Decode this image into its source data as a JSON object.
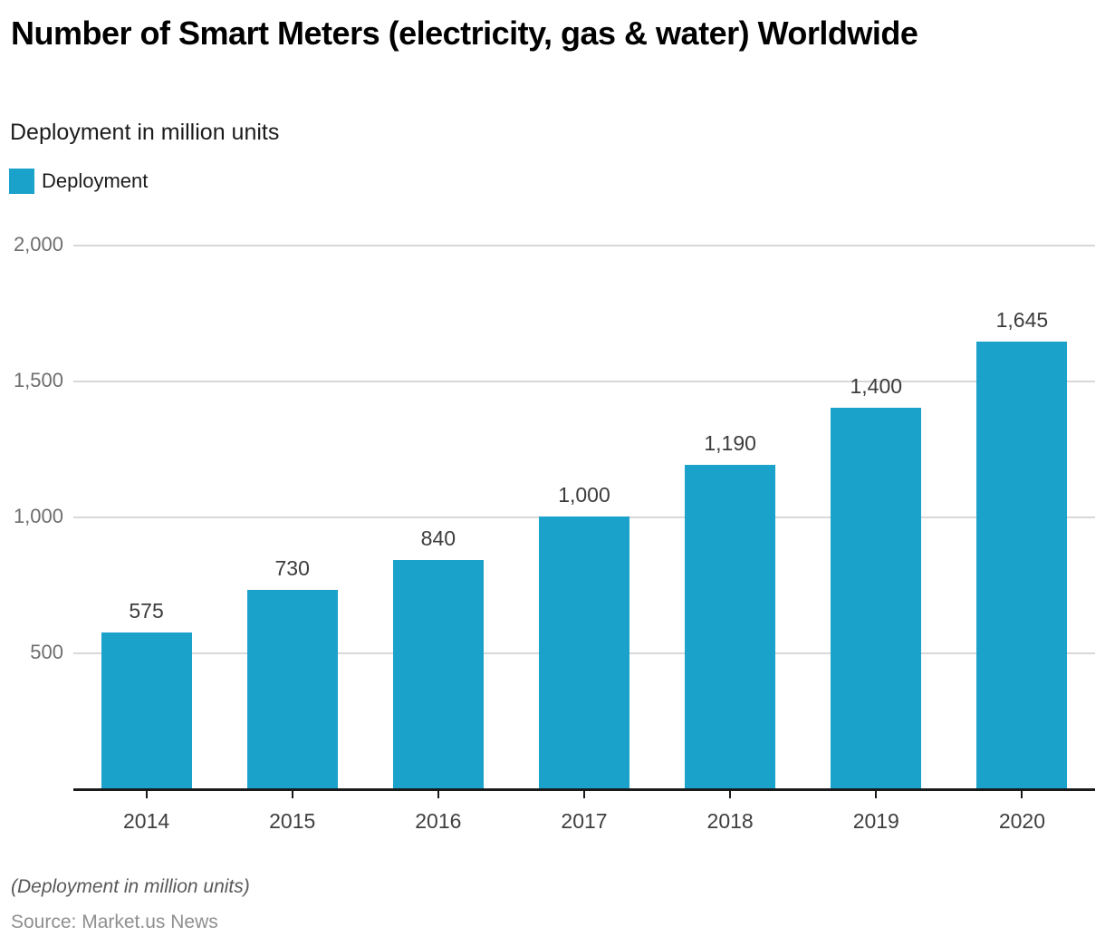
{
  "header": {
    "title": "Number of Smart Meters (electricity, gas & water) Worldwide",
    "subtitle": "Deployment in million units"
  },
  "legend": {
    "items": [
      {
        "label": "Deployment",
        "color": "#1BA2CB"
      }
    ]
  },
  "chart_data": {
    "type": "bar",
    "title": "Number of Smart Meters (electricity, gas & water) Worldwide",
    "subtitle": "Deployment in million units",
    "categories": [
      "2014",
      "2015",
      "2016",
      "2017",
      "2018",
      "2019",
      "2020"
    ],
    "series": [
      {
        "name": "Deployment",
        "values": [
          575,
          730,
          840,
          1000,
          1190,
          1400,
          1645
        ],
        "value_labels": [
          "575",
          "730",
          "840",
          "1,000",
          "1,190",
          "1,400",
          "1,645"
        ]
      }
    ],
    "xlabel": "",
    "ylabel": "",
    "ylim": [
      0,
      2000
    ],
    "y_ticks": [
      {
        "value": 2000,
        "label": "2,000"
      },
      {
        "value": 1500,
        "label": "1,500"
      },
      {
        "value": 1000,
        "label": "1,000"
      },
      {
        "value": 500,
        "label": "500"
      }
    ],
    "grid": true,
    "legend_position": "top-left",
    "colors": {
      "bar": "#1BA2CB",
      "gridline": "#d8d8d8",
      "axis": "#1a1a1a",
      "y_tick_text": "#6e6e6e",
      "x_tick_text": "#3f3f3f",
      "value_label_text": "#3c3c3c"
    }
  },
  "footer": {
    "note": "(Deployment in million units)",
    "source": "Source: Market.us News"
  }
}
